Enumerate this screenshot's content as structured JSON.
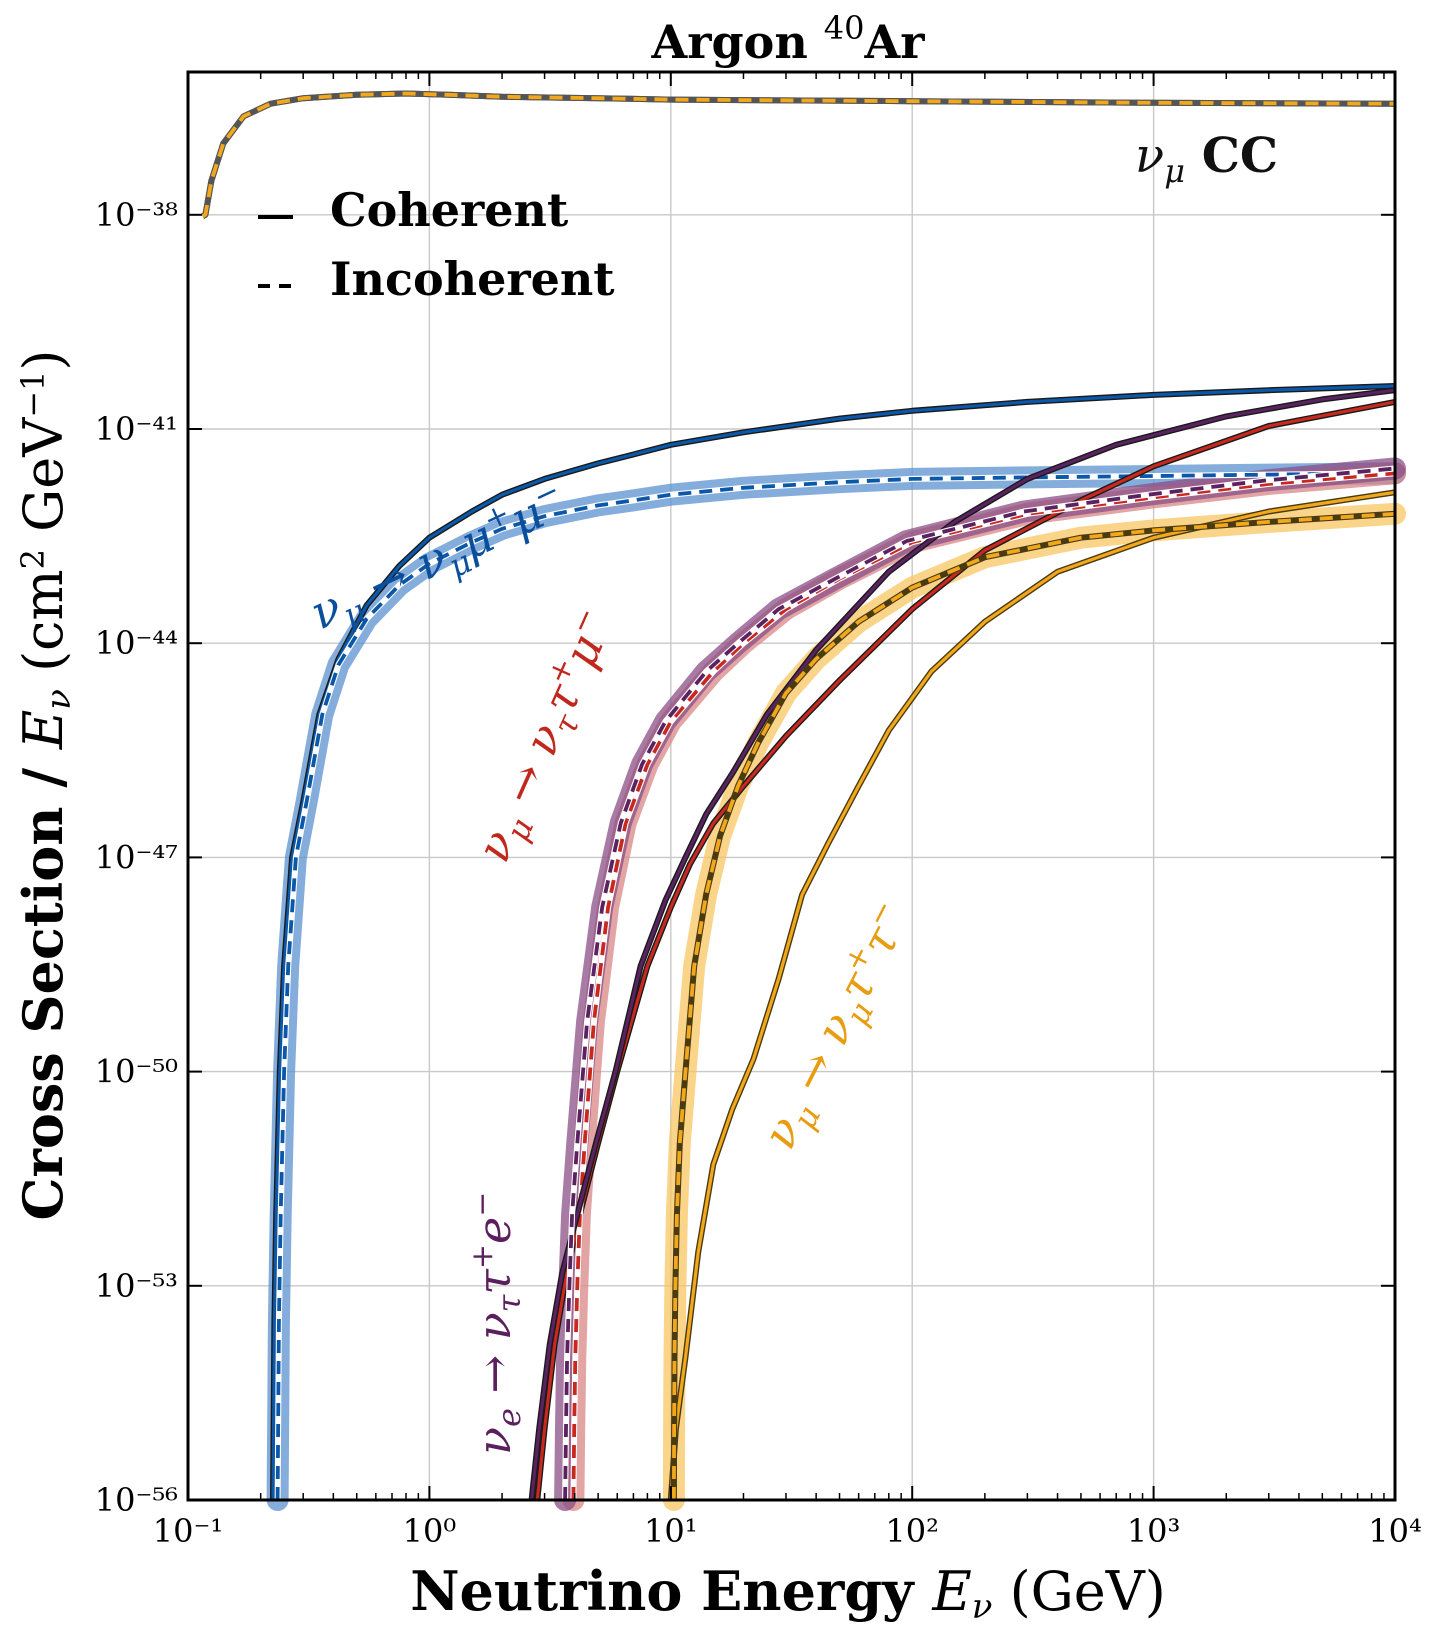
{
  "chart_data": {
    "type": "line",
    "title": "Argon ⁴⁰Ar",
    "xlabel": "Neutrino Energy Eν (GeV)",
    "ylabel": "Cross Section / Eν (cm² GeV⁻¹)",
    "xscale": "log",
    "yscale": "log",
    "xlim": [
      0.1,
      10000
    ],
    "ylim": [
      1e-56,
      1e-36
    ],
    "x_ticks": [
      "10⁻¹",
      "10⁰",
      "10¹",
      "10²",
      "10³",
      "10⁴"
    ],
    "y_ticks": [
      "10⁻⁵⁶",
      "10⁻⁵³",
      "10⁻⁵⁰",
      "10⁻⁴⁷",
      "10⁻⁴⁴",
      "10⁻⁴¹",
      "10⁻³⁸"
    ],
    "grid": true,
    "legend": {
      "placement": "top-left",
      "entries": [
        {
          "label": "Coherent",
          "style": "solid"
        },
        {
          "label": "Incoherent",
          "style": "dashed"
        }
      ]
    },
    "annotations": [
      {
        "text": "νμ CC",
        "color": "#111111"
      },
      {
        "text": "νμ → νμμ⁺μ⁻",
        "color": "#0b4f9c"
      },
      {
        "text": "νμ → νττ⁺μ⁻",
        "color": "#c0281e"
      },
      {
        "text": "νe → νττ⁺e⁻",
        "color": "#5a1f5c"
      },
      {
        "text": "νμ → νμτ⁺τ⁻",
        "color": "#e89c10"
      }
    ],
    "series": [
      {
        "name": "νμ CC",
        "style": "solid",
        "color": "#f2a81d",
        "outline": "#555555",
        "x": [
          0.115,
          0.118,
          0.125,
          0.14,
          0.17,
          0.22,
          0.3,
          0.5,
          0.8,
          1.2,
          2,
          5,
          10,
          100,
          1000,
          10000
        ],
        "y": [
          9.55e-39,
          1e-38,
          3e-38,
          1e-37,
          2.4e-37,
          3.6e-37,
          4.3e-37,
          4.8e-37,
          5e-37,
          4.8e-37,
          4.5e-37,
          4.3e-37,
          4.1e-37,
          3.9e-37,
          3.7e-37,
          3.6e-37
        ]
      },
      {
        "name": "νμ CC",
        "style": "dashed",
        "color": "#f2a81d",
        "outline": "#555555",
        "x": [
          0.115,
          0.118,
          0.125,
          0.14,
          0.17,
          0.22,
          0.3,
          0.5,
          0.8,
          1.2,
          2,
          5,
          10,
          100,
          1000,
          10000
        ],
        "y": [
          9.55e-39,
          1e-38,
          3e-38,
          1e-37,
          2.4e-37,
          3.6e-37,
          4.3e-37,
          4.8e-37,
          5e-37,
          4.8e-37,
          4.5e-37,
          4.3e-37,
          4.1e-37,
          3.9e-37,
          3.7e-37,
          3.6e-37
        ]
      },
      {
        "name": "νμ → νμμ⁺μ⁻",
        "style": "solid",
        "color": "#0b57a8",
        "x": [
          0.225,
          0.228,
          0.232,
          0.24,
          0.25,
          0.27,
          0.3,
          0.35,
          0.42,
          0.55,
          0.75,
          1,
          1.5,
          2,
          3,
          5,
          7,
          10,
          20,
          50,
          100,
          300,
          1000,
          3000,
          10000
        ],
        "y": [
          1e-56,
          3e-54,
          1e-52,
          1e-50,
          3e-49,
          1e-47,
          6e-47,
          1e-45,
          6e-45,
          3.4e-44,
          1.2e-43,
          3e-43,
          7e-43,
          1.2e-42,
          2e-42,
          3.3e-42,
          4.4e-42,
          6e-42,
          9e-42,
          1.4e-41,
          1.8e-41,
          2.4e-41,
          3e-41,
          3.5e-41,
          4e-41
        ]
      },
      {
        "name": "νμ → νμμ⁺μ⁻",
        "style": "dashed",
        "color": "#0b57a8",
        "band": "#5b91d0",
        "x": [
          0.235,
          0.238,
          0.242,
          0.25,
          0.26,
          0.28,
          0.31,
          0.36,
          0.42,
          0.55,
          0.75,
          1,
          1.5,
          2,
          3,
          5,
          7,
          10,
          20,
          50,
          100,
          300,
          1000,
          3000,
          10000
        ],
        "y": [
          1e-56,
          3e-54,
          1e-52,
          1e-50,
          3e-49,
          1e-47,
          6e-47,
          1e-45,
          5e-45,
          2.2e-44,
          6.5e-44,
          1.3e-43,
          2.6e-43,
          4e-43,
          6e-43,
          8.5e-43,
          1e-42,
          1.2e-42,
          1.5e-42,
          1.8e-42,
          2e-42,
          2.1e-42,
          2.2e-42,
          2.3e-42,
          2.4e-42
        ]
      },
      {
        "name": "νμ → νττ⁺μ⁻",
        "style": "solid",
        "color": "#c8291f",
        "x": [
          2.8,
          3,
          3.3,
          3.7,
          4.2,
          5,
          6,
          8,
          10,
          12,
          15,
          20,
          30,
          50,
          100,
          200,
          500,
          1000,
          3000,
          10000
        ],
        "y": [
          1e-56,
          1e-55,
          1.5e-54,
          1.5e-53,
          1e-52,
          1e-51,
          1e-50,
          3e-49,
          2e-48,
          8e-48,
          3e-47,
          1e-46,
          5e-46,
          3e-45,
          3e-44,
          2e-43,
          1e-42,
          3e-42,
          1.1e-41,
          2.4e-41
        ]
      },
      {
        "name": "νμ → νττ⁺μ⁻",
        "style": "dashed",
        "color": "#c8291f",
        "band": "#d98585",
        "x": [
          3.95,
          3.98,
          4.02,
          4.1,
          4.2,
          4.4,
          4.8,
          5.5,
          6.5,
          8,
          10,
          15,
          20,
          30,
          50,
          100,
          300,
          1000,
          3000,
          10000
        ],
        "y": [
          1e-56,
          1e-55,
          1e-54,
          1e-53,
          1e-52,
          1e-51,
          5e-50,
          2e-48,
          3e-47,
          2e-46,
          8e-46,
          4e-45,
          1e-44,
          3e-44,
          8e-44,
          2.6e-43,
          6.5e-43,
          1.1e-42,
          1.7e-42,
          2.4e-42
        ]
      },
      {
        "name": "νe → νττ⁺e⁻",
        "style": "solid",
        "color": "#5a2260",
        "x": [
          2.65,
          2.85,
          3.15,
          3.55,
          4.1,
          4.9,
          5.9,
          7.5,
          9.5,
          11.5,
          14,
          18,
          25,
          40,
          80,
          150,
          300,
          700,
          2000,
          5000,
          10000
        ],
        "y": [
          1e-56,
          1e-55,
          1.5e-54,
          1.5e-53,
          1e-52,
          1e-51,
          1e-50,
          3e-49,
          2.5e-48,
          1e-47,
          4e-47,
          1.5e-46,
          1e-45,
          8e-45,
          1e-43,
          5e-43,
          2e-42,
          6e-42,
          1.5e-41,
          2.6e-41,
          3.5e-41
        ]
      },
      {
        "name": "νe → νττ⁺e⁻",
        "style": "dashed",
        "color": "#5a2260",
        "band": "#8a4f86",
        "x": [
          3.65,
          3.68,
          3.72,
          3.8,
          3.9,
          4.1,
          4.5,
          5.2,
          6.2,
          7.6,
          9.5,
          14,
          19,
          28,
          48,
          95,
          290,
          950,
          2900,
          10000
        ],
        "y": [
          1e-56,
          1e-55,
          1e-54,
          1e-53,
          1e-52,
          1e-51,
          5e-50,
          2e-48,
          3e-47,
          2e-46,
          8e-46,
          4e-45,
          1e-44,
          3e-44,
          8e-44,
          2.7e-43,
          7e-43,
          1.2e-42,
          1.9e-42,
          2.8e-42
        ]
      },
      {
        "name": "νμ → νμτ⁺τ⁻",
        "style": "solid",
        "color": "#f2a81d",
        "outline": "#4a3a10",
        "x": [
          10,
          10.5,
          11.5,
          13,
          15,
          18,
          22,
          28,
          35,
          45,
          60,
          80,
          120,
          200,
          400,
          1000,
          3000,
          10000
        ],
        "y": [
          1e-56,
          1e-55,
          1e-54,
          3e-53,
          5e-52,
          3e-51,
          1.5e-50,
          2e-49,
          3e-48,
          1.6e-47,
          1e-46,
          6e-46,
          4e-45,
          2e-44,
          1e-43,
          3e-43,
          7e-43,
          1.3e-42
        ]
      },
      {
        "name": "νμ → νμτ⁺τ⁻",
        "style": "dashed",
        "color": "#f2a81d",
        "outline": "#4a3a10",
        "band": "#f8c660",
        "x": [
          10.3,
          10.32,
          10.36,
          10.45,
          10.6,
          10.9,
          11.5,
          12.5,
          14,
          16,
          19,
          23,
          30,
          40,
          60,
          100,
          200,
          500,
          1000,
          3000,
          10000
        ],
        "y": [
          1e-56,
          1e-55,
          1e-54,
          1e-53,
          1e-52,
          1e-51,
          1e-50,
          3e-49,
          3e-48,
          2e-47,
          1e-46,
          4e-46,
          2e-45,
          6e-45,
          2e-44,
          6e-44,
          1.6e-43,
          3e-43,
          3.8e-43,
          5e-43,
          6.5e-43
        ]
      }
    ]
  }
}
